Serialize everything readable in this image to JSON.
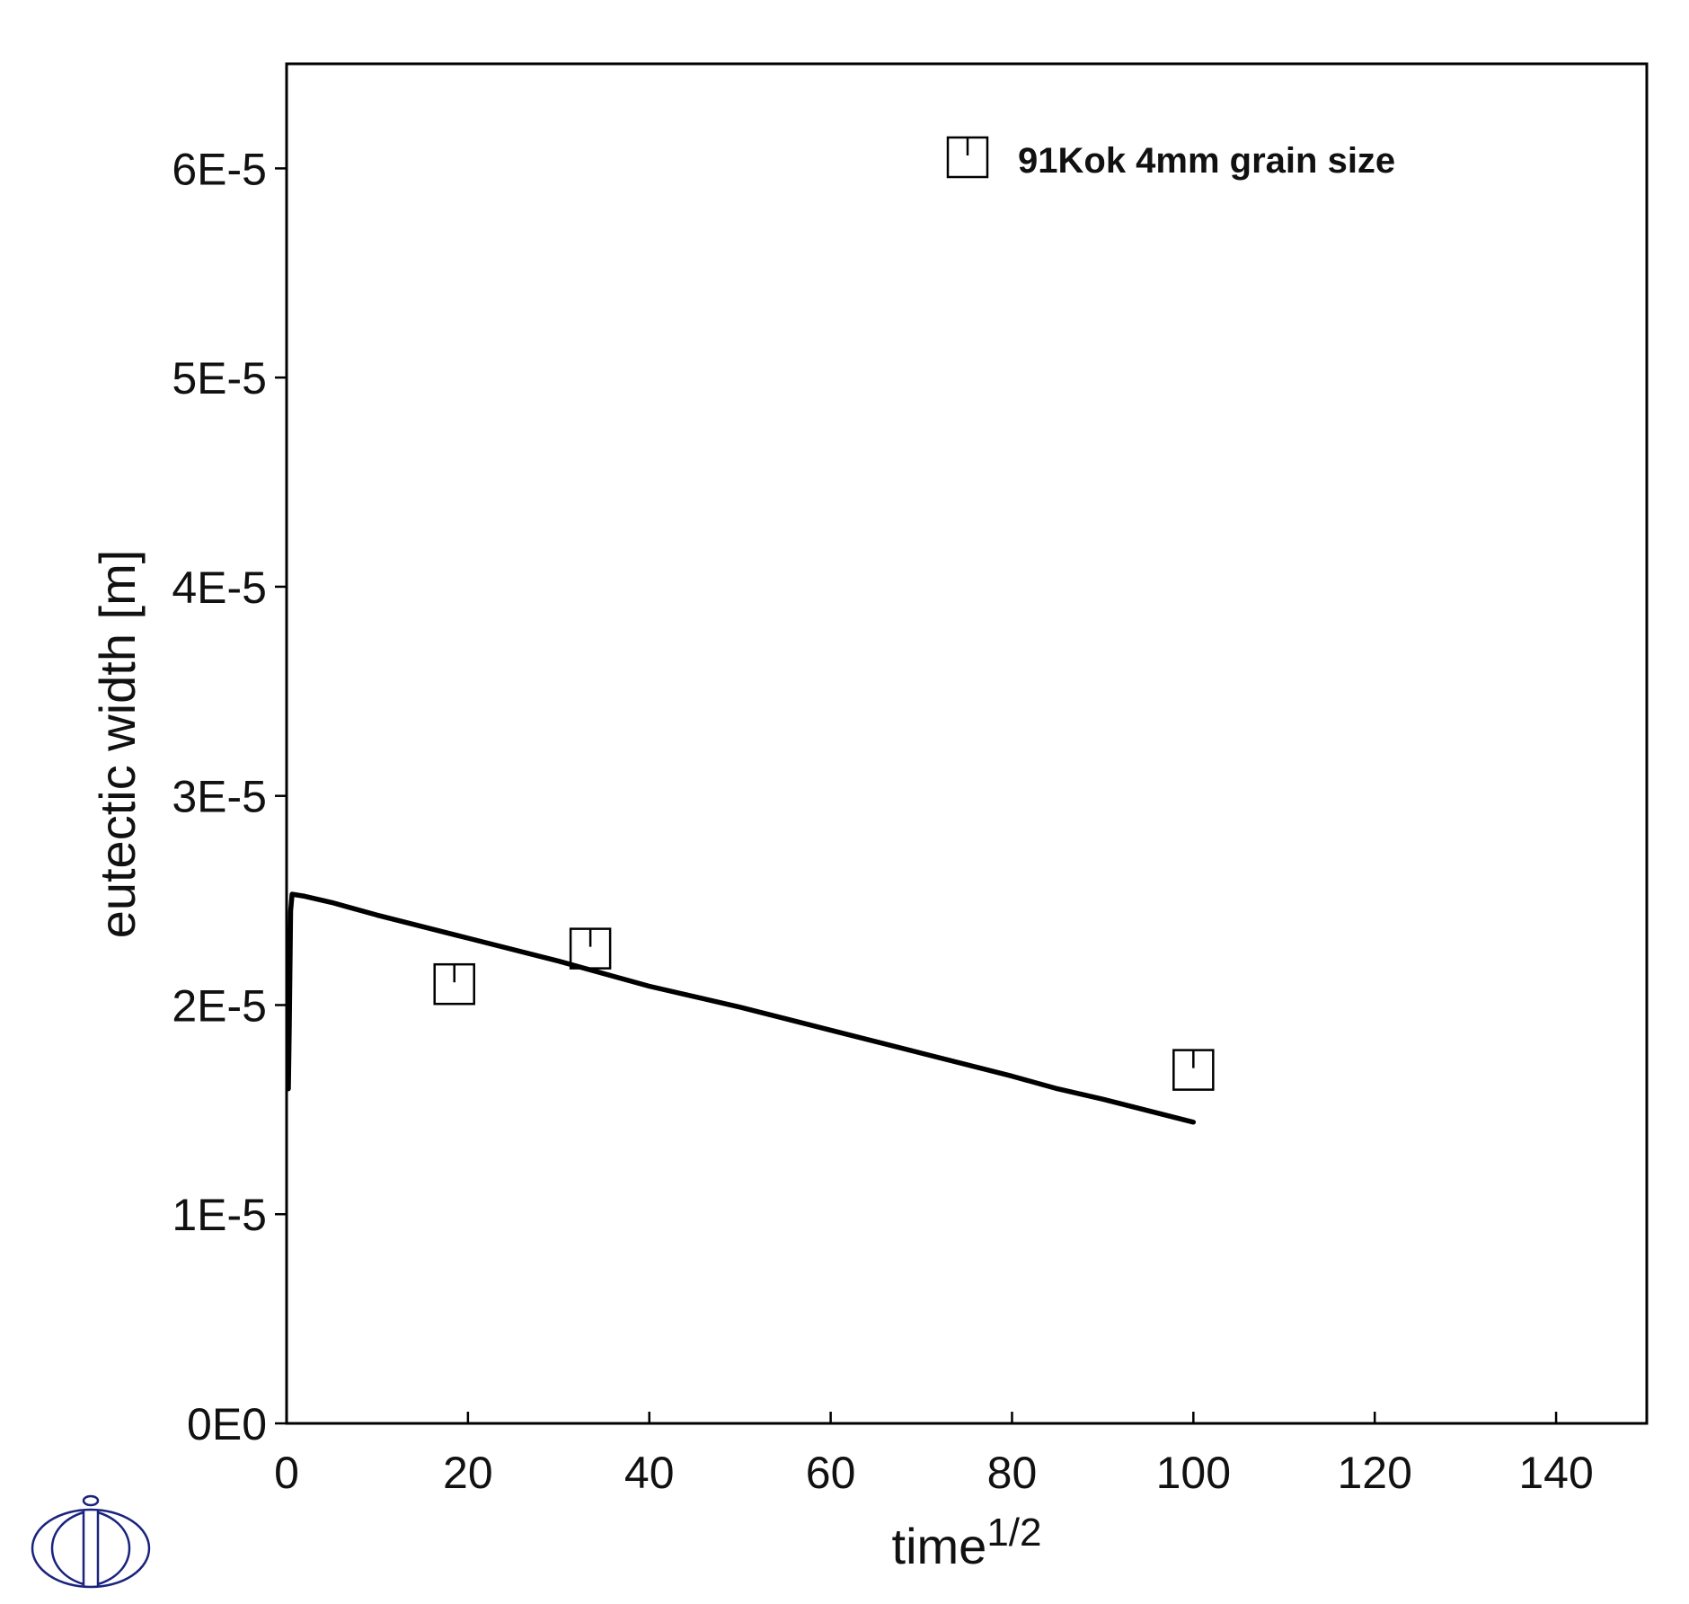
{
  "chart_data": {
    "type": "line",
    "title": "",
    "xlabel": "time",
    "xlabel_superscript": "1/2",
    "ylabel": "eutectic width [m]",
    "xlim": [
      0,
      150
    ],
    "ylim": [
      0,
      6.5e-05
    ],
    "x_ticks": [
      0,
      20,
      40,
      60,
      80,
      100,
      120,
      140
    ],
    "x_tick_labels": [
      "0",
      "20",
      "40",
      "60",
      "80",
      "100",
      "120",
      "140"
    ],
    "y_ticks": [
      0,
      1e-05,
      2e-05,
      3e-05,
      4e-05,
      5e-05,
      6e-05
    ],
    "y_tick_labels": [
      "0E0",
      "1E-5",
      "2E-5",
      "3E-5",
      "4E-5",
      "5E-5",
      "6E-5"
    ],
    "grid": false,
    "legend_position": "top-right",
    "series": [
      {
        "kind": "line",
        "color": "#000000",
        "x": [
          0.2,
          0.3,
          0.45,
          0.6,
          2,
          5,
          10,
          20,
          30,
          40,
          50,
          60,
          70,
          80,
          85,
          90,
          100
        ],
        "y": [
          1.6e-05,
          1.9e-05,
          2.45e-05,
          2.53e-05,
          2.52e-05,
          2.49e-05,
          2.43e-05,
          2.32e-05,
          2.21e-05,
          2.09e-05,
          1.99e-05,
          1.88e-05,
          1.77e-05,
          1.66e-05,
          1.6e-05,
          1.55e-05,
          1.44e-05
        ]
      },
      {
        "name": "91Kok 4mm grain size",
        "kind": "scatter",
        "marker": "square-with-tick",
        "color": "#000000",
        "x": [
          18.5,
          33.5,
          100
        ],
        "y": [
          2.1e-05,
          2.27e-05,
          1.69e-05
        ]
      }
    ]
  },
  "logo": {
    "name": "thermo-calc-logo",
    "color": "#1a237e"
  }
}
